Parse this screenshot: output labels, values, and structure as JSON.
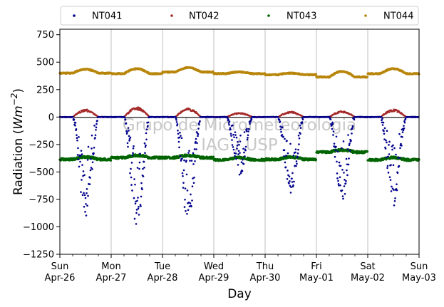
{
  "chart_data": {
    "type": "scatter",
    "title": "",
    "xlabel": "Day",
    "ylabel_main": "Radiation (",
    "ylabel_unit": "Wm",
    "ylabel_exp": "−2",
    "ylabel_close": ")",
    "ylim": [
      -1250,
      800
    ],
    "xlim": [
      "2020-04-26",
      "2020-05-03"
    ],
    "yticks": [
      {
        "value": 750,
        "label": "750"
      },
      {
        "value": 500,
        "label": "500"
      },
      {
        "value": 250,
        "label": "250"
      },
      {
        "value": 0,
        "label": "0"
      },
      {
        "value": -250,
        "label": "−250"
      },
      {
        "value": -500,
        "label": "−500"
      },
      {
        "value": -750,
        "label": "−750"
      },
      {
        "value": -1000,
        "label": "−1000"
      },
      {
        "value": -1250,
        "label": "−1250"
      }
    ],
    "xticks": [
      {
        "date": "2020-04-26",
        "day": "Sun",
        "date_label": "Apr-26"
      },
      {
        "date": "2020-04-27",
        "day": "Mon",
        "date_label": "Apr-27"
      },
      {
        "date": "2020-04-28",
        "day": "Tue",
        "date_label": "Apr-28"
      },
      {
        "date": "2020-04-29",
        "day": "Wed",
        "date_label": "Apr-29"
      },
      {
        "date": "2020-04-30",
        "day": "Thu",
        "date_label": "Apr-30"
      },
      {
        "date": "2020-05-01",
        "day": "Fri",
        "date_label": "May-01"
      },
      {
        "date": "2020-05-02",
        "day": "Sat",
        "date_label": "May-02"
      },
      {
        "date": "2020-05-03",
        "day": "Sun",
        "date_label": "May-03"
      }
    ],
    "grid": "vertical",
    "legend_placement": "top",
    "watermark_line1": "Grupo de Micrometeorologia",
    "watermark_line2": "IAG / USP",
    "series": [
      {
        "name": "NT041",
        "color": "#00008b"
      },
      {
        "name": "NT042",
        "color": "#a52a2a"
      },
      {
        "name": "NT043",
        "color": "#006400"
      },
      {
        "name": "NT044",
        "color": "#b8860b"
      }
    ],
    "daily": [
      {
        "date": "2020-04-26",
        "nt041_min": -900,
        "nt042_peak": 70,
        "nt043_base": -385,
        "nt044_base": 400,
        "nt044_peak": 435
      },
      {
        "date": "2020-04-27",
        "nt041_min": -1000,
        "nt042_peak": 90,
        "nt043_base": -370,
        "nt044_base": 395,
        "nt044_peak": 440
      },
      {
        "date": "2020-04-28",
        "nt041_min": -950,
        "nt042_peak": 80,
        "nt043_base": -370,
        "nt044_base": 410,
        "nt044_peak": 450
      },
      {
        "date": "2020-04-29",
        "nt041_min": -550,
        "nt042_peak": 40,
        "nt043_base": -390,
        "nt044_base": 395,
        "nt044_peak": 410
      },
      {
        "date": "2020-04-30",
        "nt041_min": -700,
        "nt042_peak": 50,
        "nt043_base": -385,
        "nt044_base": 385,
        "nt044_peak": 400
      },
      {
        "date": "2020-05-01",
        "nt041_min": -770,
        "nt042_peak": 55,
        "nt043_base": -320,
        "nt044_base": 365,
        "nt044_peak": 415
      },
      {
        "date": "2020-05-02",
        "nt041_min": -800,
        "nt042_peak": 70,
        "nt043_base": -390,
        "nt044_base": 395,
        "nt044_peak": 440
      }
    ]
  }
}
